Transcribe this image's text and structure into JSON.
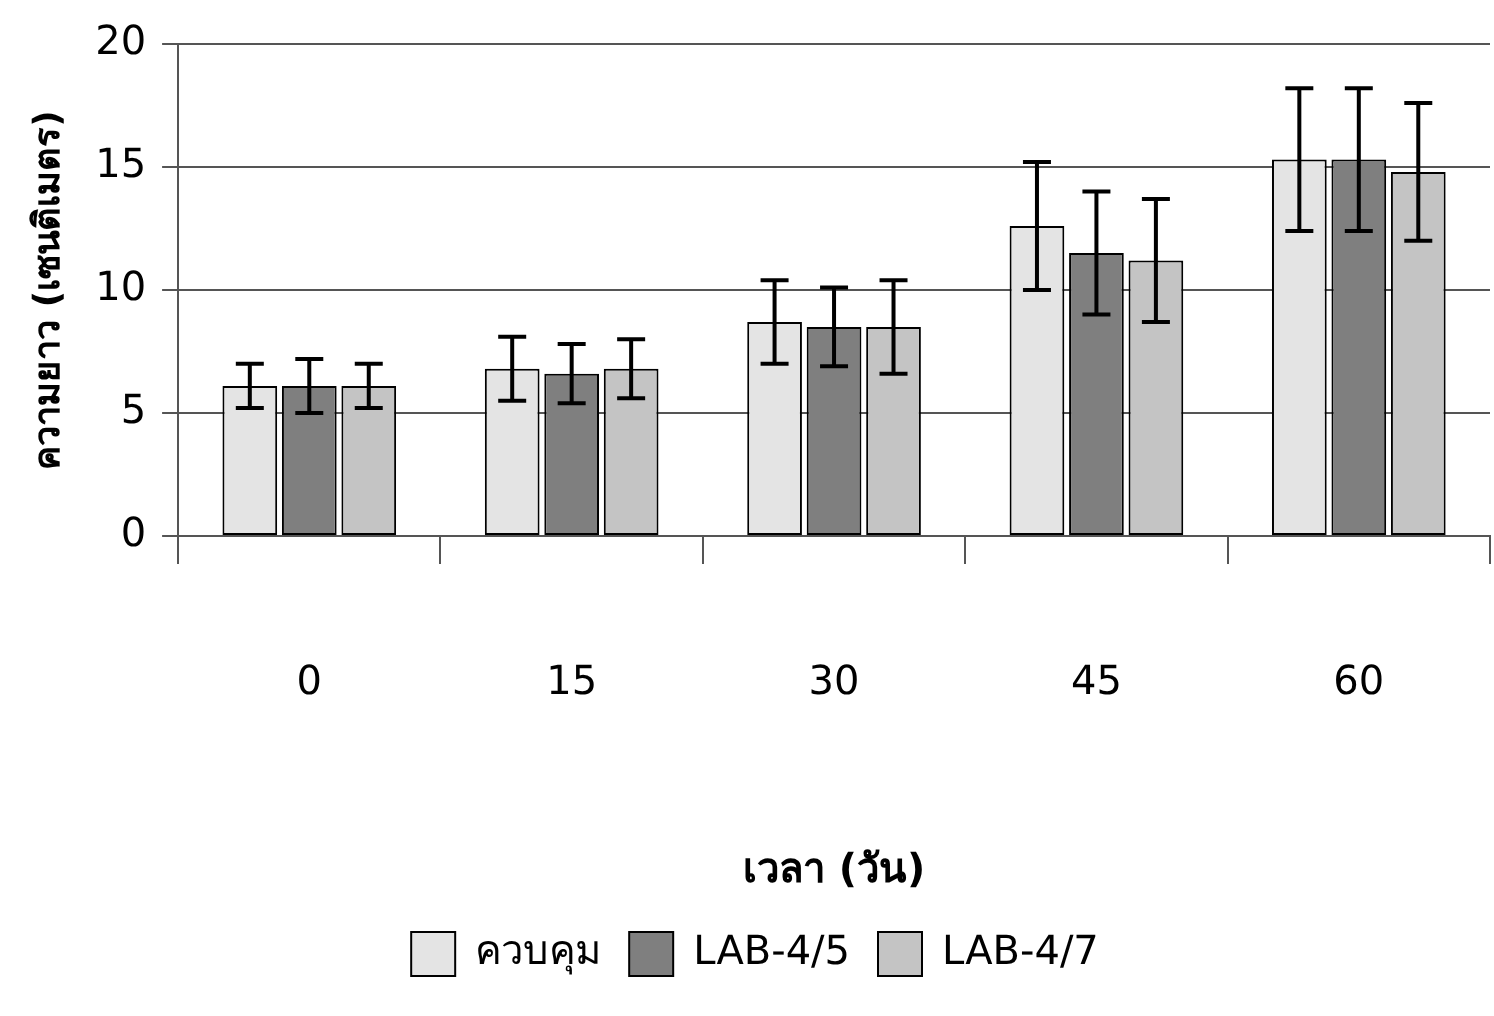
{
  "chart_data": {
    "type": "bar",
    "xlabel": "เวลา (วัน)",
    "ylabel": "ความยาว (เซนติเมตร)",
    "categories": [
      "0",
      "15",
      "30",
      "45",
      "60"
    ],
    "series": [
      {
        "name": "ควบคุม",
        "color": "#e4e4e4",
        "values": [
          6.1,
          6.8,
          8.7,
          12.6,
          15.3
        ],
        "errors": [
          0.9,
          1.3,
          1.7,
          2.6,
          2.9
        ]
      },
      {
        "name": "LAB-4/5",
        "color": "#7f7f7f",
        "values": [
          6.1,
          6.6,
          8.5,
          11.5,
          15.3
        ],
        "errors": [
          1.1,
          1.2,
          1.6,
          2.5,
          2.9
        ]
      },
      {
        "name": "LAB-4/7",
        "color": "#c4c4c4",
        "values": [
          6.1,
          6.8,
          8.5,
          11.2,
          14.8
        ],
        "errors": [
          0.9,
          1.2,
          1.9,
          2.5,
          2.8
        ]
      }
    ],
    "ylim": [
      0,
      20
    ],
    "yticks": [
      0,
      5,
      10,
      15,
      20
    ],
    "grid": "y",
    "legend": "bottom"
  }
}
